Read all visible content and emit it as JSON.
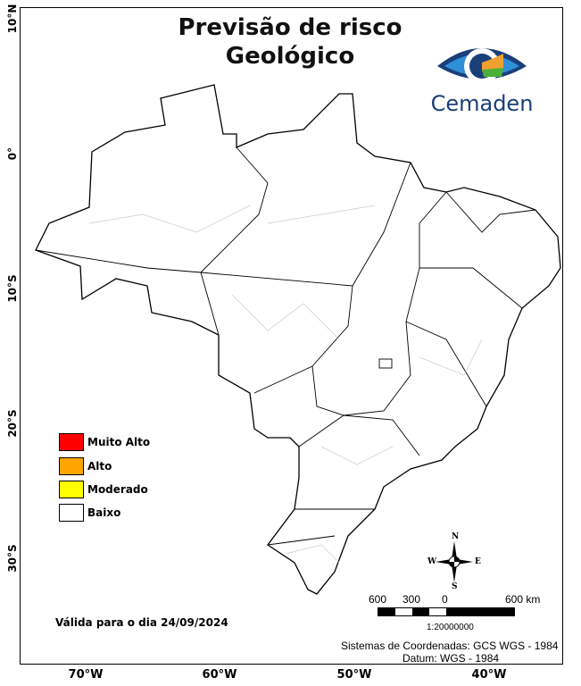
{
  "title_line1": "Previsão de risco",
  "title_line2": "Geológico",
  "logo_text": "Cemaden",
  "lat_labels": [
    "10°N",
    "0°",
    "10°S",
    "20°S",
    "30°S"
  ],
  "lon_labels": [
    "70°W",
    "60°W",
    "50°W",
    "40°W"
  ],
  "legend": [
    {
      "label": "Muito Alto",
      "color": "#ff0000"
    },
    {
      "label": "Alto",
      "color": "#ffa500"
    },
    {
      "label": "Moderado",
      "color": "#ffff00"
    },
    {
      "label": "Baixo",
      "color": "#ffffff"
    }
  ],
  "valid_text": "Válida para o dia 24/09/2024",
  "compass": {
    "n": "N",
    "s": "S",
    "e": "E",
    "w": "W"
  },
  "scale": {
    "labels": [
      "600",
      "300",
      "0",
      "600 km"
    ],
    "ratio": "1:20000000"
  },
  "crs_line1": "Sistemas de Coordenadas: GCS WGS - 1984",
  "crs_line2": "Datum: WGS - 1984",
  "map_risk_level": "Baixo"
}
